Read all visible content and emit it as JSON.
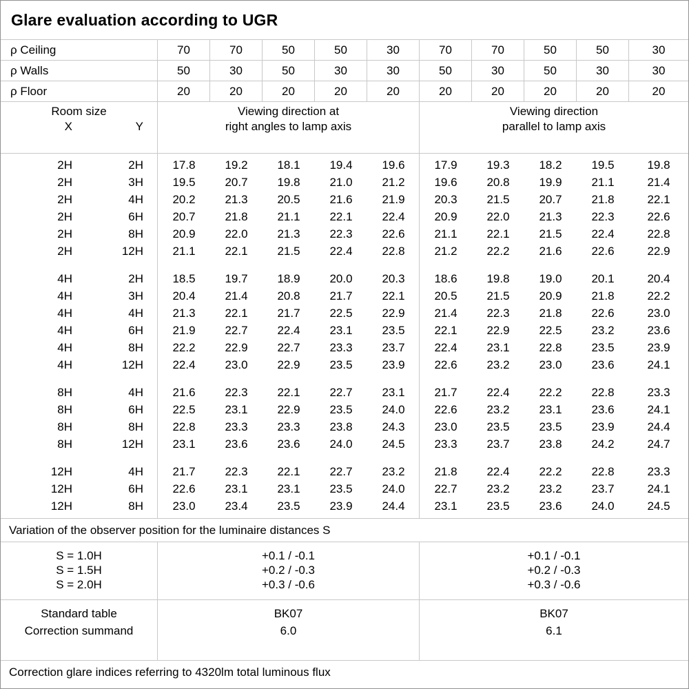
{
  "title": "Glare evaluation according to UGR",
  "reflectance_rows": [
    {
      "label": "ρ Ceiling",
      "values": [
        "70",
        "70",
        "50",
        "50",
        "30",
        "70",
        "70",
        "50",
        "50",
        "30"
      ]
    },
    {
      "label": "ρ Walls",
      "values": [
        "50",
        "30",
        "50",
        "30",
        "30",
        "50",
        "30",
        "50",
        "30",
        "30"
      ]
    },
    {
      "label": "ρ Floor",
      "values": [
        "20",
        "20",
        "20",
        "20",
        "20",
        "20",
        "20",
        "20",
        "20",
        "20"
      ]
    }
  ],
  "table_header": {
    "room_size_label": "Room size",
    "x_label": "X",
    "y_label": "Y",
    "left_heading_line1": "Viewing direction at",
    "left_heading_line2": "right angles to lamp axis",
    "right_heading_line1": "Viewing direction",
    "right_heading_line2": "parallel to lamp axis"
  },
  "ugr_table": {
    "groups": [
      {
        "rows": [
          {
            "x": "2H",
            "y": "2H",
            "values": [
              "17.8",
              "19.2",
              "18.1",
              "19.4",
              "19.6",
              "17.9",
              "19.3",
              "18.2",
              "19.5",
              "19.8"
            ]
          },
          {
            "x": "2H",
            "y": "3H",
            "values": [
              "19.5",
              "20.7",
              "19.8",
              "21.0",
              "21.2",
              "19.6",
              "20.8",
              "19.9",
              "21.1",
              "21.4"
            ]
          },
          {
            "x": "2H",
            "y": "4H",
            "values": [
              "20.2",
              "21.3",
              "20.5",
              "21.6",
              "21.9",
              "20.3",
              "21.5",
              "20.7",
              "21.8",
              "22.1"
            ]
          },
          {
            "x": "2H",
            "y": "6H",
            "values": [
              "20.7",
              "21.8",
              "21.1",
              "22.1",
              "22.4",
              "20.9",
              "22.0",
              "21.3",
              "22.3",
              "22.6"
            ]
          },
          {
            "x": "2H",
            "y": "8H",
            "values": [
              "20.9",
              "22.0",
              "21.3",
              "22.3",
              "22.6",
              "21.1",
              "22.1",
              "21.5",
              "22.4",
              "22.8"
            ]
          },
          {
            "x": "2H",
            "y": "12H",
            "values": [
              "21.1",
              "22.1",
              "21.5",
              "22.4",
              "22.8",
              "21.2",
              "22.2",
              "21.6",
              "22.6",
              "22.9"
            ]
          }
        ]
      },
      {
        "rows": [
          {
            "x": "4H",
            "y": "2H",
            "values": [
              "18.5",
              "19.7",
              "18.9",
              "20.0",
              "20.3",
              "18.6",
              "19.8",
              "19.0",
              "20.1",
              "20.4"
            ]
          },
          {
            "x": "4H",
            "y": "3H",
            "values": [
              "20.4",
              "21.4",
              "20.8",
              "21.7",
              "22.1",
              "20.5",
              "21.5",
              "20.9",
              "21.8",
              "22.2"
            ]
          },
          {
            "x": "4H",
            "y": "4H",
            "values": [
              "21.3",
              "22.1",
              "21.7",
              "22.5",
              "22.9",
              "21.4",
              "22.3",
              "21.8",
              "22.6",
              "23.0"
            ]
          },
          {
            "x": "4H",
            "y": "6H",
            "values": [
              "21.9",
              "22.7",
              "22.4",
              "23.1",
              "23.5",
              "22.1",
              "22.9",
              "22.5",
              "23.2",
              "23.6"
            ]
          },
          {
            "x": "4H",
            "y": "8H",
            "values": [
              "22.2",
              "22.9",
              "22.7",
              "23.3",
              "23.7",
              "22.4",
              "23.1",
              "22.8",
              "23.5",
              "23.9"
            ]
          },
          {
            "x": "4H",
            "y": "12H",
            "values": [
              "22.4",
              "23.0",
              "22.9",
              "23.5",
              "23.9",
              "22.6",
              "23.2",
              "23.0",
              "23.6",
              "24.1"
            ]
          }
        ]
      },
      {
        "rows": [
          {
            "x": "8H",
            "y": "4H",
            "values": [
              "21.6",
              "22.3",
              "22.1",
              "22.7",
              "23.1",
              "21.7",
              "22.4",
              "22.2",
              "22.8",
              "23.3"
            ]
          },
          {
            "x": "8H",
            "y": "6H",
            "values": [
              "22.5",
              "23.1",
              "22.9",
              "23.5",
              "24.0",
              "22.6",
              "23.2",
              "23.1",
              "23.6",
              "24.1"
            ]
          },
          {
            "x": "8H",
            "y": "8H",
            "values": [
              "22.8",
              "23.3",
              "23.3",
              "23.8",
              "24.3",
              "23.0",
              "23.5",
              "23.5",
              "23.9",
              "24.4"
            ]
          },
          {
            "x": "8H",
            "y": "12H",
            "values": [
              "23.1",
              "23.6",
              "23.6",
              "24.0",
              "24.5",
              "23.3",
              "23.7",
              "23.8",
              "24.2",
              "24.7"
            ]
          }
        ]
      },
      {
        "rows": [
          {
            "x": "12H",
            "y": "4H",
            "values": [
              "21.7",
              "22.3",
              "22.1",
              "22.7",
              "23.2",
              "21.8",
              "22.4",
              "22.2",
              "22.8",
              "23.3"
            ]
          },
          {
            "x": "12H",
            "y": "6H",
            "values": [
              "22.6",
              "23.1",
              "23.1",
              "23.5",
              "24.0",
              "22.7",
              "23.2",
              "23.2",
              "23.7",
              "24.1"
            ]
          },
          {
            "x": "12H",
            "y": "8H",
            "values": [
              "23.0",
              "23.4",
              "23.5",
              "23.9",
              "24.4",
              "23.1",
              "23.5",
              "23.6",
              "24.0",
              "24.5"
            ]
          }
        ]
      }
    ]
  },
  "variation_note": "Variation of the observer position for the luminaire distances S",
  "s_variation": {
    "rows": [
      {
        "label": "S = 1.0H",
        "left": "+0.1 / -0.1",
        "right": "+0.1 / -0.1"
      },
      {
        "label": "S = 1.5H",
        "left": "+0.2 / -0.3",
        "right": "+0.2 / -0.3"
      },
      {
        "label": "S = 2.0H",
        "left": "+0.3 / -0.6",
        "right": "+0.3 / -0.6"
      }
    ]
  },
  "standard_correction": {
    "rows": [
      {
        "label": "Standard table",
        "left": "BK07",
        "right": "BK07"
      },
      {
        "label": "Correction summand",
        "left": "6.0",
        "right": "6.1"
      }
    ]
  },
  "footer_note": "Correction glare indices referring to 4320lm total luminous flux",
  "colors": {
    "background": "#ffffff",
    "text": "#000000",
    "inner_border": "#c8c8c8",
    "outer_border": "#919191"
  }
}
